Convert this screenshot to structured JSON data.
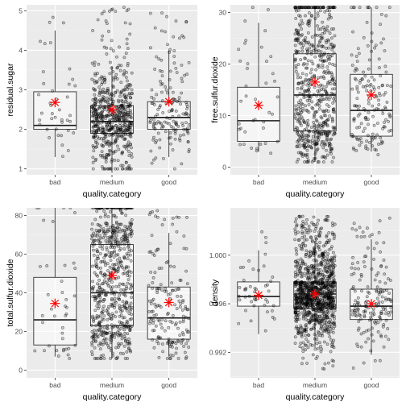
{
  "chart_data": [
    {
      "type": "boxplot",
      "xlabel": "quality.category",
      "ylabel": "residual.sugar",
      "categories": [
        "bad",
        "medium",
        "good"
      ],
      "ylim": [
        0.85,
        5.15
      ],
      "yticks": [
        1,
        2,
        3,
        4,
        5
      ],
      "boxes": [
        {
          "q1": 2.0,
          "median": 2.1,
          "q3": 2.95,
          "whisker_low": 1.3,
          "whisker_high": 4.5,
          "mean": 2.68
        },
        {
          "q1": 1.9,
          "median": 2.2,
          "q3": 2.6,
          "whisker_low": 0.9,
          "whisker_high": 3.6,
          "mean": 2.5
        },
        {
          "q1": 2.0,
          "median": 2.3,
          "q3": 2.7,
          "whisker_low": 1.3,
          "whisker_high": 4.0,
          "mean": 2.7
        }
      ],
      "points": {
        "n": [
          40,
          600,
          160
        ],
        "low": 1.0,
        "high": 5.1
      }
    },
    {
      "type": "boxplot",
      "xlabel": "quality.category",
      "ylabel": "free.sulfur.dioxide",
      "categories": [
        "bad",
        "medium",
        "good"
      ],
      "ylim": [
        -1.5,
        31.5
      ],
      "yticks": [
        0,
        10,
        20,
        30
      ],
      "boxes": [
        {
          "q1": 5,
          "median": 9,
          "q3": 15.5,
          "whisker_low": 3,
          "whisker_high": 28,
          "mean": 12
        },
        {
          "q1": 7,
          "median": 14,
          "q3": 22,
          "whisker_low": 1,
          "whisker_high": 31,
          "mean": 16.5
        },
        {
          "q1": 6,
          "median": 11,
          "q3": 18,
          "whisker_low": 3,
          "whisker_high": 31,
          "mean": 14
        }
      ],
      "points": {
        "n": [
          40,
          620,
          160
        ],
        "low": 1,
        "high": 31
      }
    },
    {
      "type": "boxplot",
      "xlabel": "quality.category",
      "ylabel": "total.sulfur.dioxide",
      "categories": [
        "bad",
        "medium",
        "good"
      ],
      "ylim": [
        -4,
        84
      ],
      "yticks": [
        0,
        20,
        40,
        60,
        80
      ],
      "boxes": [
        {
          "q1": 13,
          "median": 26,
          "q3": 48,
          "whisker_low": 7,
          "whisker_high": 84,
          "mean": 34.5
        },
        {
          "q1": 23,
          "median": 40,
          "q3": 65,
          "whisker_low": 6,
          "whisker_high": 84,
          "mean": 49
        },
        {
          "q1": 16,
          "median": 27,
          "q3": 43,
          "whisker_low": 7,
          "whisker_high": 71,
          "mean": 35
        }
      ],
      "points": {
        "n": [
          40,
          650,
          170
        ],
        "low": 6,
        "high": 84
      }
    },
    {
      "type": "boxplot",
      "xlabel": "quality.category",
      "ylabel": "density",
      "categories": [
        "bad",
        "medium",
        "good"
      ],
      "ylim": [
        0.9899,
        1.0039
      ],
      "yticks": [
        0.992,
        0.996,
        1.0
      ],
      "ytick_labels": [
        "0.992",
        "0.996",
        "1.000"
      ],
      "boxes": [
        {
          "q1": 0.9958,
          "median": 0.9966,
          "q3": 0.9978,
          "whisker_low": 0.9935,
          "whisker_high": 1.0004,
          "mean": 0.9967
        },
        {
          "q1": 0.9956,
          "median": 0.9968,
          "q3": 0.9978,
          "whisker_low": 0.9924,
          "whisker_high": 1.0012,
          "mean": 0.9968
        },
        {
          "q1": 0.9947,
          "median": 0.9958,
          "q3": 0.9972,
          "whisker_low": 0.9918,
          "whisker_high": 1.0013,
          "mean": 0.996
        }
      ],
      "points": {
        "n": [
          45,
          1100,
          170
        ],
        "low": 0.9905,
        "high": 1.0032
      }
    }
  ],
  "colors": {
    "panel": "#ebebeb",
    "points": "#000000",
    "mean_marker": "#ff0000",
    "box_fill": "#ffffff"
  }
}
